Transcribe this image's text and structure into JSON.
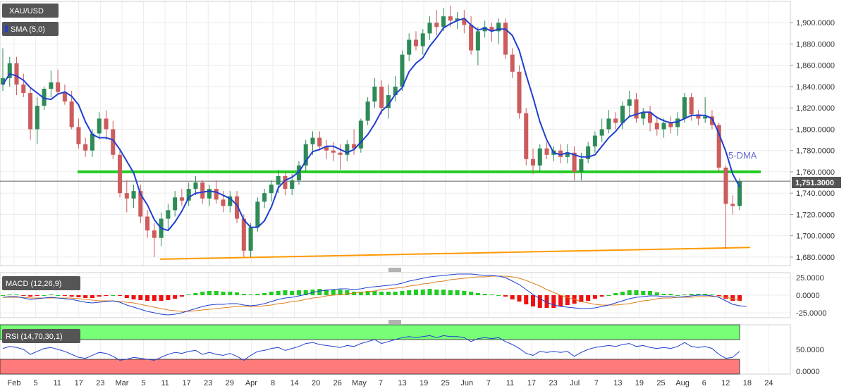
{
  "panels": {
    "price": {
      "symbol_label": "XAU/USD",
      "sma_label": "SMA (5,0)",
      "dma_annotation": "5-DMA",
      "current_price_label": "1,751.3000"
    },
    "macd": {
      "label": "MACD (12,26,9)"
    },
    "rsi": {
      "label": "RSI (14,70,30,1)"
    }
  },
  "colors": {
    "up": "#2e8b57",
    "down": "#cd5c5c",
    "sma": "#1f3fd0",
    "support": "#22cc22",
    "trendline": "#ff9900",
    "macd_line": "#1f3fd0",
    "signal_line": "#e08020",
    "hist_pos": "#22cc22",
    "hist_neg": "#ee1111",
    "rsi_line": "#1f3fd0",
    "rsi_overbought": "#77ff77",
    "rsi_oversold": "#ff7a7a",
    "label_bg": "#555555"
  },
  "chart_data": [
    {
      "type": "candlestick",
      "title": "XAU/USD",
      "indicator": "SMA (5,0)",
      "x_ticks": [
        "Feb",
        "5",
        "11",
        "17",
        "23",
        "Mar",
        "5",
        "11",
        "17",
        "23",
        "29",
        "Apr",
        "8",
        "14",
        "20",
        "26",
        "May",
        "7",
        "13",
        "19",
        "25",
        "Jun",
        "7",
        "11",
        "17",
        "23",
        "Jul",
        "7",
        "13",
        "19",
        "25",
        "Aug",
        "6",
        "12",
        "18",
        "24"
      ],
      "y_ticks": [
        "1,680.0000",
        "1,700.0000",
        "1,720.0000",
        "1,740.0000",
        "1,760.0000",
        "1,780.0000",
        "1,800.0000",
        "1,820.0000",
        "1,840.0000",
        "1,860.0000",
        "1,880.0000",
        "1,900.0000"
      ],
      "ylim": [
        1672,
        1920
      ],
      "current_price": 1751.3,
      "support_level": 1760,
      "trendline": [
        {
          "x": 0.175,
          "y": 1678
        },
        {
          "x": 1.0,
          "y": 1689
        }
      ],
      "candles": [
        {
          "o": 1842,
          "h": 1876,
          "l": 1836,
          "c": 1848
        },
        {
          "o": 1848,
          "h": 1868,
          "l": 1840,
          "c": 1862
        },
        {
          "o": 1862,
          "h": 1868,
          "l": 1832,
          "c": 1842
        },
        {
          "o": 1842,
          "h": 1852,
          "l": 1830,
          "c": 1834
        },
        {
          "o": 1834,
          "h": 1838,
          "l": 1790,
          "c": 1800
        },
        {
          "o": 1800,
          "h": 1830,
          "l": 1786,
          "c": 1822
        },
        {
          "o": 1822,
          "h": 1840,
          "l": 1818,
          "c": 1838
        },
        {
          "o": 1838,
          "h": 1855,
          "l": 1830,
          "c": 1844
        },
        {
          "o": 1844,
          "h": 1856,
          "l": 1833,
          "c": 1835
        },
        {
          "o": 1835,
          "h": 1842,
          "l": 1823,
          "c": 1826
        },
        {
          "o": 1826,
          "h": 1836,
          "l": 1800,
          "c": 1802
        },
        {
          "o": 1802,
          "h": 1810,
          "l": 1782,
          "c": 1786
        },
        {
          "o": 1786,
          "h": 1792,
          "l": 1774,
          "c": 1780
        },
        {
          "o": 1780,
          "h": 1800,
          "l": 1774,
          "c": 1796
        },
        {
          "o": 1796,
          "h": 1816,
          "l": 1790,
          "c": 1810
        },
        {
          "o": 1810,
          "h": 1818,
          "l": 1790,
          "c": 1800
        },
        {
          "o": 1800,
          "h": 1808,
          "l": 1772,
          "c": 1776
        },
        {
          "o": 1776,
          "h": 1782,
          "l": 1736,
          "c": 1740
        },
        {
          "o": 1740,
          "h": 1752,
          "l": 1722,
          "c": 1735
        },
        {
          "o": 1735,
          "h": 1748,
          "l": 1726,
          "c": 1742
        },
        {
          "o": 1742,
          "h": 1748,
          "l": 1712,
          "c": 1718
        },
        {
          "o": 1718,
          "h": 1724,
          "l": 1698,
          "c": 1705
        },
        {
          "o": 1705,
          "h": 1712,
          "l": 1680,
          "c": 1698
        },
        {
          "o": 1698,
          "h": 1722,
          "l": 1690,
          "c": 1716
        },
        {
          "o": 1716,
          "h": 1730,
          "l": 1706,
          "c": 1724
        },
        {
          "o": 1724,
          "h": 1742,
          "l": 1718,
          "c": 1736
        },
        {
          "o": 1736,
          "h": 1744,
          "l": 1728,
          "c": 1733
        },
        {
          "o": 1733,
          "h": 1750,
          "l": 1728,
          "c": 1744
        },
        {
          "o": 1744,
          "h": 1756,
          "l": 1738,
          "c": 1750
        },
        {
          "o": 1750,
          "h": 1752,
          "l": 1730,
          "c": 1735
        },
        {
          "o": 1735,
          "h": 1748,
          "l": 1728,
          "c": 1744
        },
        {
          "o": 1744,
          "h": 1752,
          "l": 1730,
          "c": 1734
        },
        {
          "o": 1734,
          "h": 1742,
          "l": 1722,
          "c": 1728
        },
        {
          "o": 1728,
          "h": 1742,
          "l": 1722,
          "c": 1737
        },
        {
          "o": 1737,
          "h": 1742,
          "l": 1712,
          "c": 1716
        },
        {
          "o": 1716,
          "h": 1720,
          "l": 1680,
          "c": 1686
        },
        {
          "o": 1686,
          "h": 1712,
          "l": 1680,
          "c": 1708
        },
        {
          "o": 1708,
          "h": 1736,
          "l": 1704,
          "c": 1732
        },
        {
          "o": 1732,
          "h": 1744,
          "l": 1726,
          "c": 1740
        },
        {
          "o": 1740,
          "h": 1752,
          "l": 1732,
          "c": 1748
        },
        {
          "o": 1748,
          "h": 1762,
          "l": 1740,
          "c": 1756
        },
        {
          "o": 1756,
          "h": 1760,
          "l": 1738,
          "c": 1744
        },
        {
          "o": 1744,
          "h": 1758,
          "l": 1738,
          "c": 1752
        },
        {
          "o": 1752,
          "h": 1770,
          "l": 1748,
          "c": 1766
        },
        {
          "o": 1766,
          "h": 1790,
          "l": 1760,
          "c": 1786
        },
        {
          "o": 1786,
          "h": 1798,
          "l": 1776,
          "c": 1792
        },
        {
          "o": 1792,
          "h": 1798,
          "l": 1780,
          "c": 1784
        },
        {
          "o": 1784,
          "h": 1790,
          "l": 1772,
          "c": 1780
        },
        {
          "o": 1780,
          "h": 1788,
          "l": 1770,
          "c": 1778
        },
        {
          "o": 1778,
          "h": 1786,
          "l": 1762,
          "c": 1776
        },
        {
          "o": 1776,
          "h": 1790,
          "l": 1770,
          "c": 1786
        },
        {
          "o": 1786,
          "h": 1800,
          "l": 1776,
          "c": 1782
        },
        {
          "o": 1782,
          "h": 1810,
          "l": 1778,
          "c": 1808
        },
        {
          "o": 1808,
          "h": 1830,
          "l": 1804,
          "c": 1826
        },
        {
          "o": 1826,
          "h": 1848,
          "l": 1820,
          "c": 1840
        },
        {
          "o": 1840,
          "h": 1846,
          "l": 1814,
          "c": 1820
        },
        {
          "o": 1820,
          "h": 1842,
          "l": 1810,
          "c": 1832
        },
        {
          "o": 1832,
          "h": 1850,
          "l": 1826,
          "c": 1840
        },
        {
          "o": 1840,
          "h": 1874,
          "l": 1836,
          "c": 1870
        },
        {
          "o": 1870,
          "h": 1890,
          "l": 1864,
          "c": 1884
        },
        {
          "o": 1884,
          "h": 1892,
          "l": 1874,
          "c": 1878
        },
        {
          "o": 1878,
          "h": 1894,
          "l": 1870,
          "c": 1890
        },
        {
          "o": 1890,
          "h": 1906,
          "l": 1884,
          "c": 1900
        },
        {
          "o": 1900,
          "h": 1912,
          "l": 1888,
          "c": 1896
        },
        {
          "o": 1896,
          "h": 1914,
          "l": 1892,
          "c": 1906
        },
        {
          "o": 1906,
          "h": 1916,
          "l": 1896,
          "c": 1902
        },
        {
          "o": 1902,
          "h": 1910,
          "l": 1894,
          "c": 1904
        },
        {
          "o": 1904,
          "h": 1912,
          "l": 1890,
          "c": 1898
        },
        {
          "o": 1898,
          "h": 1906,
          "l": 1870,
          "c": 1874
        },
        {
          "o": 1874,
          "h": 1896,
          "l": 1860,
          "c": 1892
        },
        {
          "o": 1892,
          "h": 1902,
          "l": 1886,
          "c": 1896
        },
        {
          "o": 1896,
          "h": 1900,
          "l": 1882,
          "c": 1892
        },
        {
          "o": 1892,
          "h": 1904,
          "l": 1880,
          "c": 1900
        },
        {
          "o": 1900,
          "h": 1904,
          "l": 1866,
          "c": 1870
        },
        {
          "o": 1870,
          "h": 1876,
          "l": 1848,
          "c": 1854
        },
        {
          "o": 1854,
          "h": 1860,
          "l": 1810,
          "c": 1815
        },
        {
          "o": 1815,
          "h": 1820,
          "l": 1766,
          "c": 1772
        },
        {
          "o": 1772,
          "h": 1782,
          "l": 1758,
          "c": 1766
        },
        {
          "o": 1766,
          "h": 1786,
          "l": 1760,
          "c": 1782
        },
        {
          "o": 1782,
          "h": 1788,
          "l": 1772,
          "c": 1776
        },
        {
          "o": 1776,
          "h": 1784,
          "l": 1770,
          "c": 1780
        },
        {
          "o": 1780,
          "h": 1786,
          "l": 1768,
          "c": 1774
        },
        {
          "o": 1774,
          "h": 1786,
          "l": 1768,
          "c": 1778
        },
        {
          "o": 1778,
          "h": 1784,
          "l": 1752,
          "c": 1760
        },
        {
          "o": 1760,
          "h": 1778,
          "l": 1752,
          "c": 1772
        },
        {
          "o": 1772,
          "h": 1788,
          "l": 1768,
          "c": 1784
        },
        {
          "o": 1784,
          "h": 1798,
          "l": 1778,
          "c": 1794
        },
        {
          "o": 1794,
          "h": 1810,
          "l": 1788,
          "c": 1800
        },
        {
          "o": 1800,
          "h": 1818,
          "l": 1796,
          "c": 1810
        },
        {
          "o": 1810,
          "h": 1816,
          "l": 1800,
          "c": 1806
        },
        {
          "o": 1806,
          "h": 1826,
          "l": 1800,
          "c": 1822
        },
        {
          "o": 1822,
          "h": 1836,
          "l": 1812,
          "c": 1828
        },
        {
          "o": 1828,
          "h": 1834,
          "l": 1806,
          "c": 1810
        },
        {
          "o": 1810,
          "h": 1820,
          "l": 1804,
          "c": 1816
        },
        {
          "o": 1816,
          "h": 1822,
          "l": 1798,
          "c": 1806
        },
        {
          "o": 1806,
          "h": 1812,
          "l": 1794,
          "c": 1800
        },
        {
          "o": 1800,
          "h": 1810,
          "l": 1792,
          "c": 1806
        },
        {
          "o": 1806,
          "h": 1812,
          "l": 1796,
          "c": 1802
        },
        {
          "o": 1802,
          "h": 1816,
          "l": 1794,
          "c": 1810
        },
        {
          "o": 1810,
          "h": 1834,
          "l": 1806,
          "c": 1830
        },
        {
          "o": 1830,
          "h": 1834,
          "l": 1808,
          "c": 1814
        },
        {
          "o": 1814,
          "h": 1818,
          "l": 1804,
          "c": 1810
        },
        {
          "o": 1810,
          "h": 1830,
          "l": 1806,
          "c": 1812
        },
        {
          "o": 1812,
          "h": 1818,
          "l": 1800,
          "c": 1804
        },
        {
          "o": 1804,
          "h": 1806,
          "l": 1760,
          "c": 1764
        },
        {
          "o": 1764,
          "h": 1766,
          "l": 1688,
          "c": 1730
        },
        {
          "o": 1730,
          "h": 1738,
          "l": 1720,
          "c": 1728
        },
        {
          "o": 1728,
          "h": 1754,
          "l": 1724,
          "c": 1751.3
        }
      ],
      "sma": [
        1842,
        1852,
        1850,
        1846,
        1839,
        1834,
        1829,
        1828,
        1833,
        1835,
        1831,
        1823,
        1807,
        1795,
        1792,
        1792,
        1790,
        1781,
        1770,
        1759,
        1739,
        1729,
        1715,
        1707,
        1705,
        1713,
        1723,
        1736,
        1740,
        1741,
        1742,
        1741,
        1738,
        1735,
        1729,
        1715,
        1708,
        1708,
        1714,
        1727,
        1745,
        1752,
        1755,
        1760,
        1770,
        1779,
        1781,
        1784,
        1784,
        1781,
        1778,
        1781,
        1788,
        1795,
        1805,
        1817,
        1823,
        1833,
        1839,
        1854,
        1862,
        1867,
        1878,
        1886,
        1895,
        1899,
        1902,
        1904,
        1898,
        1893,
        1895,
        1892,
        1894,
        1894,
        1888,
        1874,
        1851,
        1830,
        1807,
        1790,
        1778,
        1776,
        1778,
        1776,
        1774,
        1774,
        1776,
        1784,
        1792,
        1798,
        1806,
        1812,
        1814,
        1816,
        1816,
        1811,
        1808,
        1806,
        1807,
        1810,
        1813,
        1813,
        1813,
        1810,
        1796,
        1779,
        1758,
        1746
      ]
    },
    {
      "type": "line",
      "title": "MACD (12,26,9)",
      "y_ticks": [
        "25.0000",
        "0.0000",
        "-25.0000"
      ],
      "ylim": [
        -32,
        32
      ],
      "macd": [
        -3,
        -2,
        -2,
        -4,
        -6,
        -5,
        -4,
        -3,
        -4,
        -5,
        -6,
        -8,
        -10,
        -11,
        -10,
        -9,
        -8,
        -10,
        -14,
        -17,
        -20,
        -23,
        -25,
        -27,
        -28,
        -27,
        -25,
        -22,
        -19,
        -16,
        -14,
        -13,
        -13,
        -12,
        -12,
        -14,
        -15,
        -14,
        -12,
        -9,
        -6,
        -4,
        -3,
        -1,
        1,
        4,
        6,
        7,
        8,
        9,
        9,
        8,
        9,
        11,
        12,
        13,
        14,
        15,
        17,
        20,
        22,
        24,
        26,
        27,
        28,
        29,
        30,
        30,
        30,
        29,
        28,
        28,
        27,
        25,
        20,
        15,
        8,
        1,
        -5,
        -10,
        -14,
        -16,
        -17,
        -18,
        -19,
        -19,
        -18,
        -16,
        -14,
        -11,
        -8,
        -5,
        -3,
        -2,
        -1,
        -1,
        -2,
        -2,
        -3,
        -2,
        -1,
        0,
        0,
        -1,
        -3,
        -8,
        -13,
        -15,
        -16
      ],
      "signal": [
        -3,
        -3,
        -3,
        -3,
        -4,
        -4,
        -4,
        -4,
        -4,
        -4,
        -4,
        -5,
        -6,
        -7,
        -8,
        -8,
        -8,
        -9,
        -10,
        -11,
        -13,
        -15,
        -17,
        -19,
        -21,
        -22,
        -23,
        -23,
        -22,
        -21,
        -20,
        -19,
        -18,
        -17,
        -16,
        -16,
        -16,
        -16,
        -15,
        -14,
        -12,
        -11,
        -9,
        -8,
        -6,
        -4,
        -3,
        -1,
        0,
        1,
        2,
        3,
        4,
        5,
        6,
        8,
        9,
        10,
        11,
        13,
        14,
        16,
        17,
        19,
        20,
        22,
        23,
        24,
        25,
        26,
        26,
        27,
        27,
        27,
        26,
        24,
        21,
        17,
        13,
        8,
        4,
        0,
        -3,
        -6,
        -9,
        -11,
        -13,
        -14,
        -14,
        -14,
        -13,
        -12,
        -10,
        -8,
        -7,
        -5,
        -4,
        -4,
        -3,
        -3,
        -3,
        -2,
        -2,
        -2,
        -2,
        -3,
        -5,
        -7
      ]
    },
    {
      "type": "line",
      "title": "RSI (14,70,30,1)",
      "y_ticks": [
        "50.0000",
        "0.0000"
      ],
      "ylim": [
        0,
        100
      ],
      "overbought": 70,
      "oversold": 30,
      "rsi": [
        52,
        56,
        54,
        50,
        40,
        46,
        52,
        54,
        50,
        46,
        40,
        34,
        32,
        38,
        44,
        42,
        36,
        28,
        30,
        34,
        32,
        30,
        28,
        34,
        40,
        44,
        42,
        46,
        48,
        40,
        44,
        40,
        38,
        42,
        36,
        28,
        38,
        46,
        48,
        52,
        54,
        48,
        52,
        56,
        62,
        64,
        60,
        58,
        56,
        54,
        58,
        56,
        62,
        66,
        70,
        62,
        66,
        70,
        74,
        76,
        74,
        76,
        78,
        74,
        78,
        76,
        76,
        74,
        66,
        72,
        74,
        72,
        74,
        66,
        60,
        52,
        42,
        38,
        46,
        44,
        46,
        44,
        46,
        36,
        44,
        50,
        54,
        56,
        58,
        56,
        60,
        62,
        56,
        58,
        54,
        52,
        54,
        52,
        56,
        64,
        56,
        54,
        56,
        52,
        40,
        32,
        34,
        46
      ]
    }
  ]
}
